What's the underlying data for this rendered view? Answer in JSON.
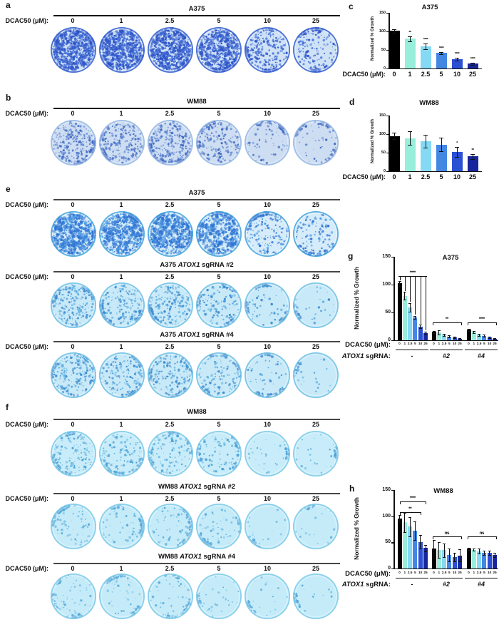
{
  "palette": {
    "bars": [
      "#000000",
      "#97efdb",
      "#86d9f4",
      "#4487e2",
      "#2c50d2",
      "#17269c"
    ]
  },
  "colony": {
    "dose_row_label": "DCAC50 (μM):",
    "doses": [
      "0",
      "1",
      "2.5",
      "5",
      "10",
      "25"
    ],
    "panels": [
      {
        "label": "a",
        "rows": [
          {
            "title": [
              {
                "text": "A375"
              }
            ],
            "stain_density": [
              0.88,
              0.76,
              0.8,
              0.6,
              0.32,
              0.17
            ],
            "dish_style": {
              "base": "#cfe2f6",
              "speckle": "#2d54c8",
              "speckle2": "#4b77dd",
              "rim": "#3b64d2"
            }
          }
        ]
      },
      {
        "label": "b",
        "rows": [
          {
            "title": [
              {
                "text": "WM88"
              }
            ],
            "stain_density": [
              0.3,
              0.28,
              0.3,
              0.22,
              0.07,
              0.05
            ],
            "dish_style": {
              "base": "#cdddf2",
              "speckle": "#3f68c2",
              "speckle2": "#6a8fd6",
              "rim": "#9cbde6"
            }
          }
        ]
      },
      {
        "label": "e",
        "rows": [
          {
            "title": [
              {
                "text": "A375"
              }
            ],
            "stain_density": [
              0.84,
              0.7,
              0.74,
              0.52,
              0.2,
              0.14
            ],
            "dish_style": {
              "base": "#d6ecfa",
              "speckle": "#2f74d4",
              "speckle2": "#54a2e2",
              "rim": "#49a7de"
            }
          },
          {
            "title": [
              {
                "text": "A375 "
              },
              {
                "text": "ATOX1",
                "italic": true
              },
              {
                "text": " sgRNA #2"
              }
            ],
            "stain_density": [
              0.28,
              0.2,
              0.24,
              0.17,
              0.06,
              0.03
            ],
            "dish_style": {
              "base": "#c8e9f8",
              "speckle": "#3d8cd0",
              "speckle2": "#64b4e2",
              "rim": "#74c3e6"
            }
          },
          {
            "title": [
              {
                "text": "A375 "
              },
              {
                "text": "ATOX1",
                "italic": true
              },
              {
                "text": " sgRNA #4"
              }
            ],
            "stain_density": [
              0.26,
              0.2,
              0.21,
              0.14,
              0.05,
              0.03
            ],
            "dish_style": {
              "base": "#c8e9f8",
              "speckle": "#3d8cd0",
              "speckle2": "#64b4e2",
              "rim": "#74c3e6"
            }
          }
        ]
      },
      {
        "label": "f",
        "rows": [
          {
            "title": [
              {
                "text": "WM88"
              }
            ],
            "stain_density": [
              0.17,
              0.14,
              0.15,
              0.11,
              0.04,
              0.03
            ],
            "dish_style": {
              "base": "#c8ecf9",
              "speckle": "#4aa0d6",
              "speckle2": "#6fbde4",
              "rim": "#82cdea"
            }
          },
          {
            "title": [
              {
                "text": "WM88 "
              },
              {
                "text": "ATOX1",
                "italic": true
              },
              {
                "text": " sgRNA #2"
              }
            ],
            "stain_density": [
              0.09,
              0.07,
              0.08,
              0.06,
              0.02,
              0.02
            ],
            "dish_style": {
              "base": "#c5ebf9",
              "speckle": "#55a8d8",
              "speckle2": "#7cc2e6",
              "rim": "#82cdea"
            }
          },
          {
            "title": [
              {
                "text": "WM88 "
              },
              {
                "text": "ATOX1",
                "italic": true
              },
              {
                "text": " sgRNA #4"
              }
            ],
            "stain_density": [
              0.06,
              0.05,
              0.05,
              0.04,
              0.02,
              0.015
            ],
            "dish_style": {
              "base": "#c5ebf9",
              "speckle": "#55a8d8",
              "speckle2": "#7cc2e6",
              "rim": "#82cdea"
            }
          }
        ]
      }
    ]
  },
  "chart_data": [
    {
      "panel": "c",
      "type": "bar",
      "title": "A375",
      "ylabel": "Normalized % Growth",
      "ylim": [
        0,
        150
      ],
      "yticks": [
        0,
        50,
        100,
        150
      ],
      "grid": false,
      "x_prefix": "DCAC50 (μM):",
      "categories": [
        "0",
        "1",
        "2.5",
        "5",
        "10",
        "25"
      ],
      "values": [
        101,
        80,
        59,
        42,
        25,
        13
      ],
      "errors": [
        4,
        7,
        8,
        3,
        3,
        3
      ],
      "sig": [
        "",
        "**",
        "****",
        "****",
        "****",
        "****"
      ]
    },
    {
      "panel": "d",
      "type": "bar",
      "title": "WM88",
      "ylabel": "Normalized % Growth",
      "ylim": [
        0,
        150
      ],
      "yticks": [
        0,
        50,
        100,
        150
      ],
      "grid": false,
      "x_prefix": "DCAC50 (μM):",
      "categories": [
        "0",
        "1",
        "2.5",
        "5",
        "10",
        "25"
      ],
      "values": [
        95,
        89,
        81,
        72,
        52,
        40
      ],
      "errors": [
        8,
        18,
        18,
        18,
        14,
        7
      ],
      "sig": [
        "",
        "",
        "",
        "",
        "*",
        "**"
      ]
    },
    {
      "panel": "g",
      "type": "grouped-bar",
      "title": "A375",
      "ylabel": "Normalized % Growth",
      "ylim": [
        0,
        150
      ],
      "yticks": [
        0,
        50,
        100,
        150
      ],
      "grid": false,
      "x_prefix": "DCAC50 (μM):",
      "group_prefix": [
        {
          "text": "ATOX1",
          "italic": true
        },
        {
          "text": " sgRNA:"
        }
      ],
      "categories": [
        "0",
        "1",
        "2.5",
        "5",
        "10",
        "25"
      ],
      "groups": [
        {
          "name": "-",
          "italic": false,
          "values": [
            102,
            80,
            59,
            41,
            25,
            13
          ],
          "errors": [
            4,
            7,
            8,
            3,
            3,
            3
          ]
        },
        {
          "name": "#2",
          "italic": true,
          "values": [
            15,
            14,
            10,
            7,
            5,
            3
          ],
          "errors": [
            2,
            4,
            2,
            2,
            1,
            1
          ]
        },
        {
          "name": "#4",
          "italic": true,
          "values": [
            19,
            15,
            10,
            8,
            5,
            3
          ],
          "errors": [
            2,
            2,
            2,
            2,
            1,
            1
          ]
        }
      ],
      "significance": [
        {
          "group": 0,
          "style": "ladder",
          "label": "****",
          "level": 115
        },
        {
          "group": 1,
          "style": "bracket",
          "label": "**",
          "level": 32
        },
        {
          "group": 2,
          "style": "bracket",
          "label": "****",
          "level": 32
        }
      ]
    },
    {
      "panel": "h",
      "type": "grouped-bar",
      "title": "WM88",
      "ylabel": "Normalized % Growth",
      "ylim": [
        0,
        150
      ],
      "yticks": [
        0,
        50,
        100,
        150
      ],
      "grid": false,
      "x_prefix": "DCAC50 (μM):",
      "group_prefix": [
        {
          "text": "ATOX1",
          "italic": true
        },
        {
          "text": " sgRNA:"
        }
      ],
      "categories": [
        "0",
        "1",
        "2.5",
        "5",
        "10",
        "25"
      ],
      "groups": [
        {
          "name": "-",
          "italic": false,
          "values": [
            95,
            88,
            80,
            72,
            51,
            39
          ],
          "errors": [
            7,
            18,
            18,
            18,
            13,
            6
          ]
        },
        {
          "name": "#2",
          "italic": true,
          "values": [
            38,
            36,
            35,
            26,
            22,
            25
          ],
          "errors": [
            17,
            15,
            13,
            12,
            8,
            12
          ]
        },
        {
          "name": "#4",
          "italic": true,
          "values": [
            38,
            36,
            33,
            30,
            30,
            26
          ],
          "errors": [
            2,
            2,
            5,
            4,
            4,
            4
          ]
        }
      ],
      "significance": [
        {
          "group": 0,
          "style": "span",
          "from": 0,
          "to": 4,
          "label": "**",
          "level": 108
        },
        {
          "group": 0,
          "style": "span",
          "from": 0,
          "to": 5,
          "label": "****",
          "level": 128
        },
        {
          "group": 1,
          "style": "bracket",
          "label": "ns",
          "level": 61
        },
        {
          "group": 2,
          "style": "bracket",
          "label": "ns",
          "level": 61
        }
      ]
    }
  ]
}
